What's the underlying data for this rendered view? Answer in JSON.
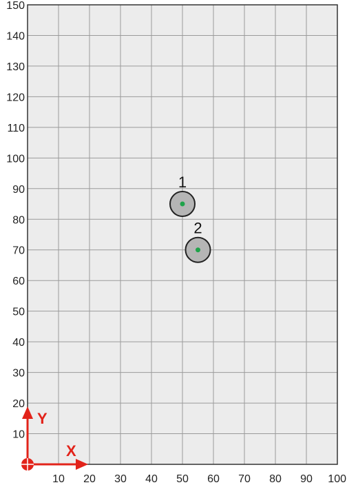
{
  "chart_data": {
    "type": "scatter",
    "xlim": [
      0,
      100
    ],
    "ylim": [
      0,
      150
    ],
    "x_ticks": [
      "10",
      "20",
      "30",
      "40",
      "50",
      "60",
      "70",
      "80",
      "90",
      "100"
    ],
    "y_ticks": [
      "10",
      "20",
      "30",
      "40",
      "50",
      "60",
      "70",
      "80",
      "90",
      "100",
      "110",
      "120",
      "130",
      "140",
      "150"
    ],
    "grid": true,
    "points": [
      {
        "label": "1",
        "x": 50,
        "y": 85
      },
      {
        "label": "2",
        "x": 55,
        "y": 70
      }
    ],
    "point_radius": 4,
    "axis_indicator": {
      "x_label": "X",
      "y_label": "Y"
    }
  },
  "colors": {
    "plot_background": "#ececec",
    "grid": "#9a9a9a",
    "border": "#333333",
    "point_fill": "#b5b5b5",
    "point_stroke": "#222222",
    "center_dot": "#1fa34a",
    "indicator": "#e2231a"
  }
}
